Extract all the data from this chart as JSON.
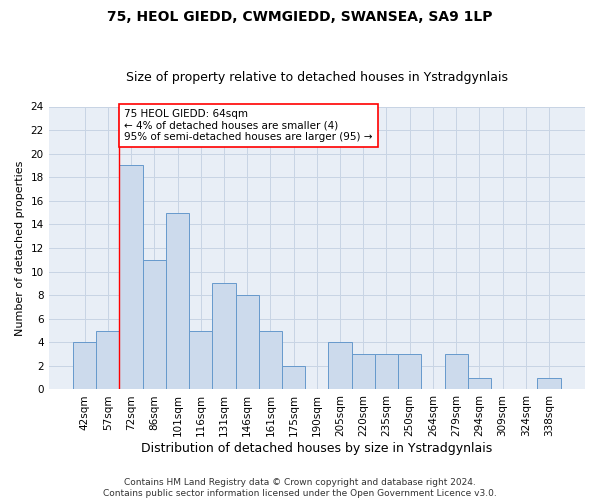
{
  "title1": "75, HEOL GIEDD, CWMGIEDD, SWANSEA, SA9 1LP",
  "title2": "Size of property relative to detached houses in Ystradgynlais",
  "xlabel": "Distribution of detached houses by size in Ystradgynlais",
  "ylabel": "Number of detached properties",
  "categories": [
    "42sqm",
    "57sqm",
    "72sqm",
    "86sqm",
    "101sqm",
    "116sqm",
    "131sqm",
    "146sqm",
    "161sqm",
    "175sqm",
    "190sqm",
    "205sqm",
    "220sqm",
    "235sqm",
    "250sqm",
    "264sqm",
    "279sqm",
    "294sqm",
    "309sqm",
    "324sqm",
    "338sqm"
  ],
  "values": [
    4,
    5,
    19,
    11,
    15,
    5,
    9,
    8,
    5,
    2,
    0,
    4,
    3,
    3,
    3,
    0,
    3,
    1,
    0,
    0,
    1
  ],
  "bar_color": "#ccdaec",
  "bar_edge_color": "#6699cc",
  "grid_color": "#c8d4e4",
  "background_color": "#e8eef6",
  "annotation_text": "75 HEOL GIEDD: 64sqm\n← 4% of detached houses are smaller (4)\n95% of semi-detached houses are larger (95) →",
  "vline_x_index": 1.5,
  "ylim": [
    0,
    24
  ],
  "yticks": [
    0,
    2,
    4,
    6,
    8,
    10,
    12,
    14,
    16,
    18,
    20,
    22,
    24
  ],
  "footnote1": "Contains HM Land Registry data © Crown copyright and database right 2024.",
  "footnote2": "Contains public sector information licensed under the Open Government Licence v3.0.",
  "title1_fontsize": 10,
  "title2_fontsize": 9,
  "xlabel_fontsize": 9,
  "ylabel_fontsize": 8,
  "tick_fontsize": 7.5,
  "annot_fontsize": 7.5,
  "footnote_fontsize": 6.5
}
